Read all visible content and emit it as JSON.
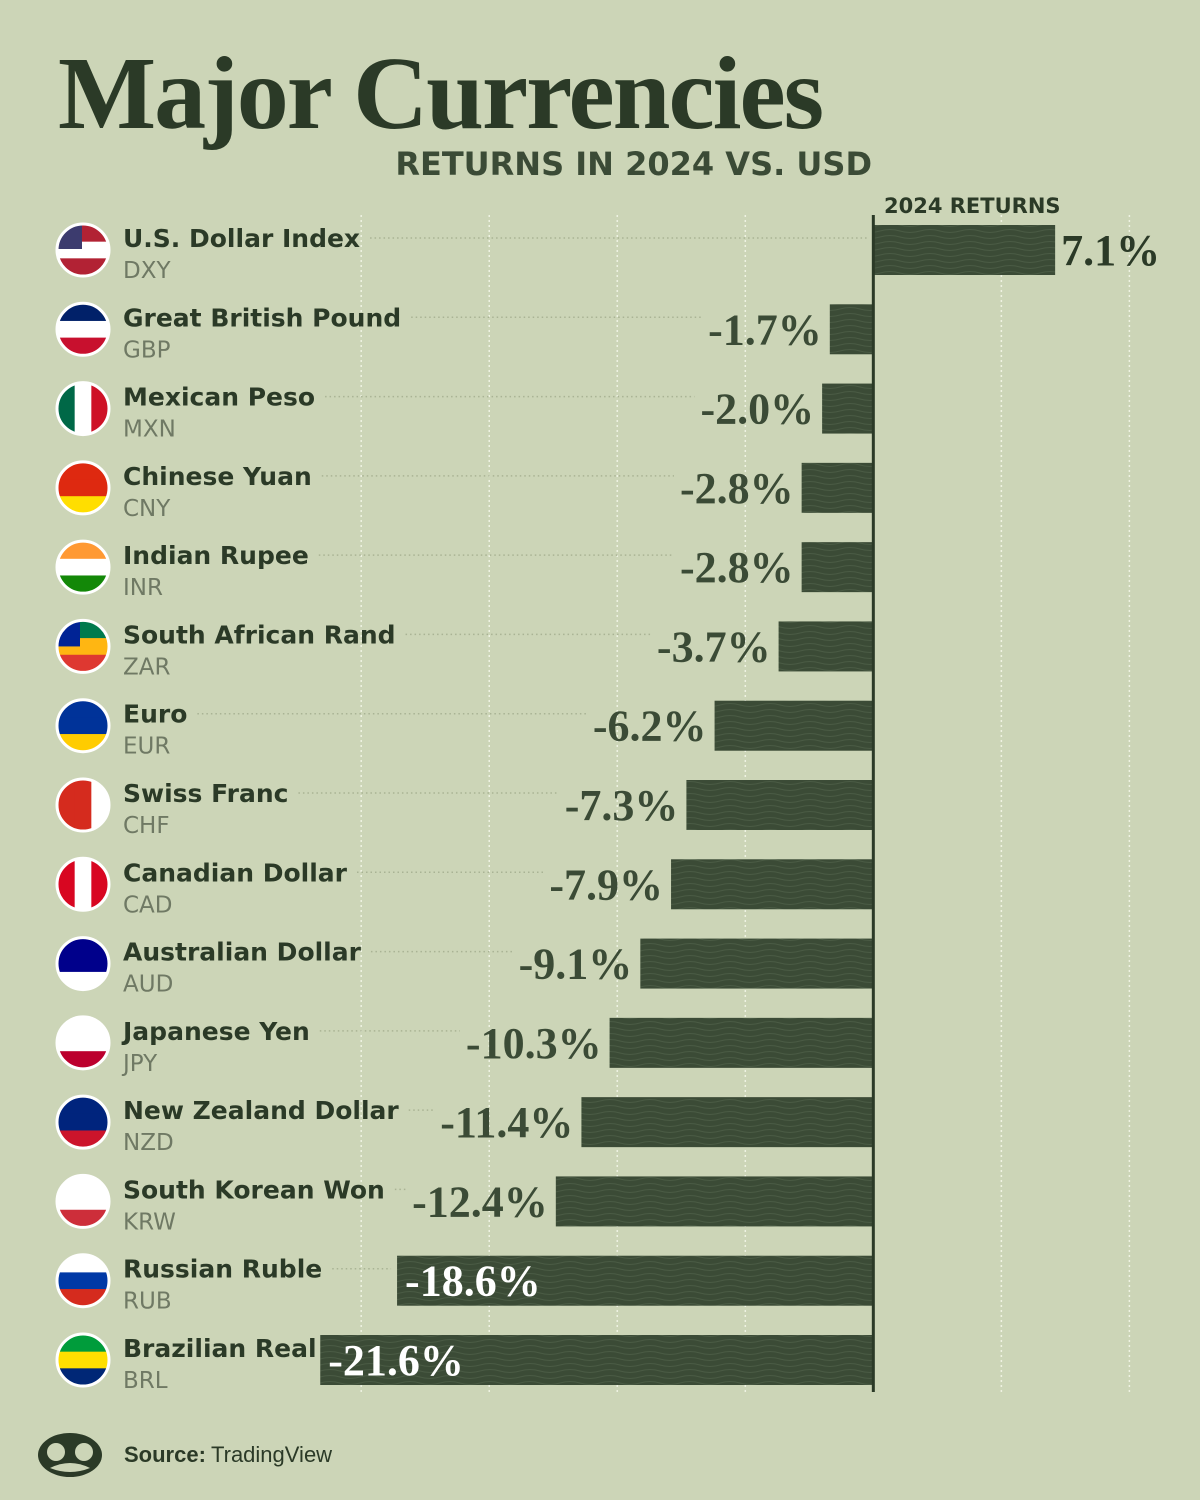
{
  "chart_data": {
    "type": "hbar",
    "title": "Major Currencies",
    "subtitle": "RETURNS IN 2024 VS. USD",
    "value_header": "2024 RETURNS",
    "categories": [
      "U.S. Dollar Index",
      "Great British Pound",
      "Mexican Peso",
      "Chinese Yuan",
      "Indian Rupee",
      "South African Rand",
      "Euro",
      "Swiss Franc",
      "Canadian Dollar",
      "Australian Dollar",
      "Japanese Yen",
      "New Zealand Dollar",
      "South Korean Won",
      "Russian Ruble",
      "Brazilian Real"
    ],
    "codes": [
      "DXY",
      "GBP",
      "MXN",
      "CNY",
      "INR",
      "ZAR",
      "EUR",
      "CHF",
      "CAD",
      "AUD",
      "JPY",
      "NZD",
      "KRW",
      "RUB",
      "BRL"
    ],
    "values": [
      7.1,
      -1.7,
      -2.0,
      -2.8,
      -2.8,
      -3.7,
      -6.2,
      -7.3,
      -7.9,
      -9.1,
      -10.3,
      -11.4,
      -12.4,
      -18.6,
      -21.6
    ],
    "value_labels": [
      "7.1%",
      "-1.7%",
      "-2.0%",
      "-2.8%",
      "-2.8%",
      "-3.7%",
      "-6.2%",
      "-7.3%",
      "-7.9%",
      "-9.1%",
      "-10.3%",
      "-11.4%",
      "-12.4%",
      "-18.6%",
      "-21.6%"
    ],
    "color": "#3b4b36",
    "xlim": [
      -22,
      11
    ],
    "xticks": [
      -20,
      -15,
      -10,
      -5,
      0,
      5,
      10
    ],
    "grid": true,
    "source_label": "Source:",
    "source": "TradingView"
  }
}
